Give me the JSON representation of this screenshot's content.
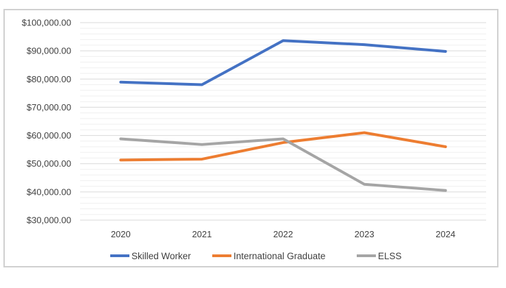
{
  "chart_data": {
    "type": "line",
    "title": "",
    "xlabel": "",
    "ylabel": "",
    "categories": [
      "2020",
      "2021",
      "2022",
      "2023",
      "2024"
    ],
    "ylim": [
      30000,
      100000
    ],
    "y_major_step": 10000,
    "y_minor_step": 2000,
    "y_tick_labels": [
      "$30,000.00",
      "$40,000.00",
      "$50,000.00",
      "$60,000.00",
      "$70,000.00",
      "$80,000.00",
      "$90,000.00",
      "$100,000.00"
    ],
    "grid": true,
    "legend_position": "bottom",
    "series": [
      {
        "name": "Skilled Worker",
        "color": "#4472C4",
        "values": [
          78900,
          78000,
          93600,
          92200,
          89800
        ]
      },
      {
        "name": "International Graduate",
        "color": "#ED7D31",
        "values": [
          51300,
          51600,
          57500,
          61000,
          56000
        ]
      },
      {
        "name": "ELSS",
        "color": "#A5A5A5",
        "values": [
          58800,
          56800,
          58800,
          42700,
          40500
        ]
      }
    ]
  }
}
